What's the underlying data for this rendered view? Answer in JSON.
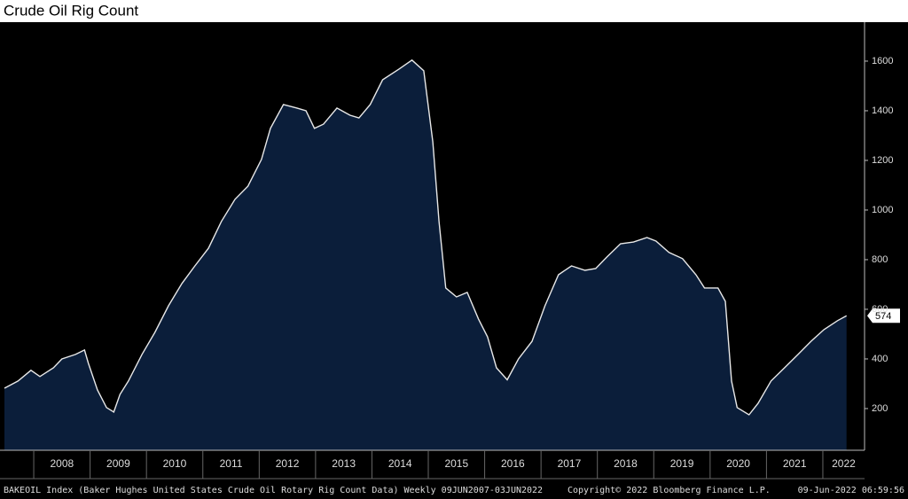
{
  "chart_data": {
    "type": "area",
    "title": "Crude Oil Rig Count",
    "footer": "BAKEOIL Index (Baker Hughes United States Crude Oil Rotary Rig Count Data) Weekly 09JUN2007-03JUN2022",
    "copyright": "Copyright© 2022 Bloomberg Finance L.P.",
    "timestamp": "09-Jun-2022 06:59:56",
    "x": [
      2007.48,
      2007.72,
      2007.95,
      2008.11,
      2008.35,
      2008.5,
      2008.74,
      2008.9,
      2008.97,
      2009.13,
      2009.29,
      2009.42,
      2009.53,
      2009.68,
      2009.92,
      2010.15,
      2010.39,
      2010.63,
      2010.86,
      2011.1,
      2011.33,
      2011.57,
      2011.8,
      2012.04,
      2012.2,
      2012.43,
      2012.67,
      2012.83,
      2012.98,
      2013.14,
      2013.38,
      2013.61,
      2013.77,
      2013.97,
      2014.19,
      2014.48,
      2014.71,
      2014.92,
      2015.08,
      2015.19,
      2015.31,
      2015.5,
      2015.69,
      2015.89,
      2016.05,
      2016.21,
      2016.4,
      2016.6,
      2016.84,
      2017.07,
      2017.31,
      2017.54,
      2017.78,
      2017.97,
      2018.17,
      2018.41,
      2018.64,
      2018.88,
      2019.04,
      2019.27,
      2019.51,
      2019.75,
      2019.9,
      2020.14,
      2020.27,
      2020.38,
      2020.48,
      2020.69,
      2020.85,
      2021.08,
      2021.32,
      2021.56,
      2021.79,
      2022.02,
      2022.26,
      2022.42
    ],
    "values": [
      282,
      311,
      354,
      329,
      364,
      400,
      418,
      436,
      382,
      275,
      204,
      186,
      257,
      311,
      418,
      507,
      614,
      704,
      775,
      846,
      954,
      1043,
      1096,
      1204,
      1329,
      1425,
      1411,
      1400,
      1329,
      1346,
      1411,
      1382,
      1371,
      1425,
      1525,
      1568,
      1604,
      1561,
      1275,
      954,
      686,
      650,
      668,
      561,
      489,
      364,
      316,
      400,
      471,
      614,
      739,
      775,
      757,
      764,
      811,
      864,
      871,
      889,
      875,
      829,
      804,
      739,
      686,
      686,
      632,
      311,
      204,
      175,
      221,
      311,
      364,
      418,
      471,
      518,
      554,
      574
    ],
    "line_color": "#e8e8e8",
    "fill_color": "#0b1e3a",
    "xlim": [
      2007.48,
      2022.74
    ],
    "xticks": [
      2008,
      2009,
      2010,
      2011,
      2012,
      2013,
      2014,
      2015,
      2016,
      2017,
      2018,
      2019,
      2020,
      2021,
      2022
    ],
    "ylim": [
      32,
      1757
    ],
    "yticks": [
      200,
      400,
      600,
      800,
      1000,
      1200,
      1400,
      1600
    ]
  }
}
